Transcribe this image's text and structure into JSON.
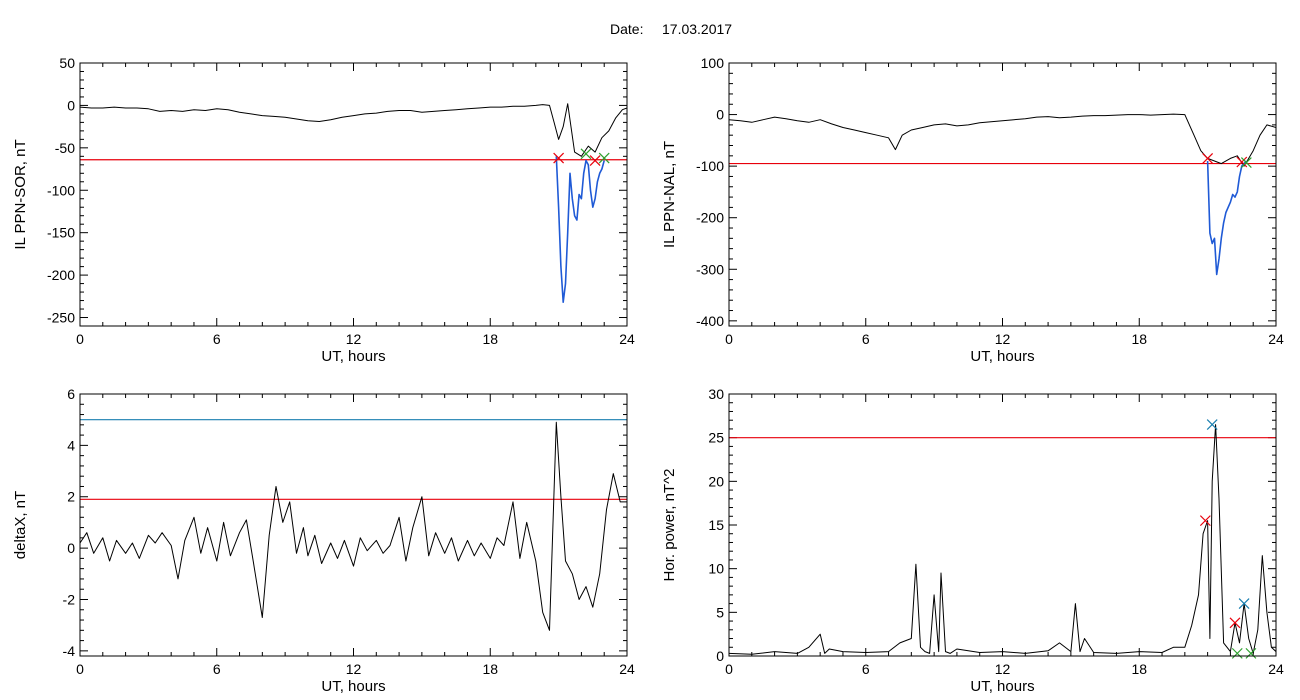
{
  "header": {
    "date_label": "Date:",
    "date_value": "17.03.2017"
  },
  "chart_data": [
    {
      "type": "line",
      "ylabel": "IL PPN-SOR, nT",
      "xlabel": "UT, hours",
      "xlim": [
        0,
        24
      ],
      "ylim": [
        -260,
        50
      ],
      "xticks": [
        0,
        6,
        12,
        18,
        24
      ],
      "yticks": [
        50,
        0,
        -50,
        -100,
        -150,
        -200,
        -250
      ],
      "threshold": {
        "value": -64,
        "color": "#e8000b"
      },
      "series": [
        {
          "role": "baseline",
          "color": "#000000",
          "x": [
            0,
            0.5,
            1,
            1.5,
            2,
            2.5,
            3,
            3.5,
            4,
            4.5,
            5,
            5.5,
            6,
            6.5,
            7,
            7.5,
            8,
            8.5,
            9,
            9.5,
            10,
            10.5,
            11,
            11.5,
            12,
            12.5,
            13,
            13.5,
            14,
            14.5,
            15,
            15.5,
            16,
            16.5,
            17,
            17.5,
            18,
            18.5,
            19,
            19.5,
            20,
            20.3,
            20.6,
            20.8,
            21,
            21.2,
            21.4,
            21.7,
            22,
            22.3,
            22.6,
            22.9,
            23.2,
            23.5,
            23.8,
            24
          ],
          "y": [
            -2,
            -3,
            -3,
            -2,
            -3,
            -3,
            -4,
            -7,
            -6,
            -7,
            -5,
            -6,
            -4,
            -5,
            -8,
            -10,
            -12,
            -13,
            -14,
            -16,
            -18,
            -19,
            -17,
            -14,
            -12,
            -10,
            -9,
            -7,
            -6,
            -6,
            -8,
            -7,
            -6,
            -5,
            -4,
            -3,
            -2,
            -2,
            -1,
            -1,
            0,
            1,
            0,
            -20,
            -40,
            -25,
            2,
            -55,
            -60,
            -48,
            -55,
            -38,
            -30,
            -15,
            -5,
            -3
          ]
        },
        {
          "role": "active",
          "color": "#1f5ad6",
          "x": [
            20.9,
            21.0,
            21.1,
            21.2,
            21.3,
            21.4,
            21.5,
            21.6,
            21.7,
            21.8,
            21.9,
            22.0,
            22.1,
            22.2,
            22.3,
            22.4,
            22.5,
            22.6,
            22.7,
            22.8,
            22.9,
            23.0
          ],
          "y": [
            -60,
            -120,
            -190,
            -232,
            -210,
            -150,
            -80,
            -110,
            -130,
            -135,
            -105,
            -110,
            -80,
            -65,
            -70,
            -100,
            -120,
            -110,
            -90,
            -80,
            -75,
            -65
          ]
        }
      ],
      "markers": [
        {
          "x": 21.0,
          "y": -62,
          "color": "#e8000b"
        },
        {
          "x": 22.2,
          "y": -57,
          "color": "#2ca02c"
        },
        {
          "x": 22.6,
          "y": -65,
          "color": "#e8000b"
        },
        {
          "x": 23.0,
          "y": -62,
          "color": "#2ca02c"
        }
      ]
    },
    {
      "type": "line",
      "ylabel": "IL PPN-NAL, nT",
      "xlabel": "UT, hours",
      "xlim": [
        0,
        24
      ],
      "ylim": [
        -410,
        100
      ],
      "xticks": [
        0,
        6,
        12,
        18,
        24
      ],
      "yticks": [
        100,
        0,
        -100,
        -200,
        -300,
        -400
      ],
      "threshold": {
        "value": -95,
        "color": "#e8000b"
      },
      "series": [
        {
          "role": "baseline",
          "color": "#000000",
          "x": [
            0,
            0.5,
            1,
            1.5,
            2,
            2.5,
            3,
            3.5,
            4,
            4.5,
            5,
            5.5,
            6,
            6.5,
            7,
            7.3,
            7.6,
            8,
            8.5,
            9,
            9.5,
            10,
            10.5,
            11,
            11.5,
            12,
            12.5,
            13,
            13.5,
            14,
            14.5,
            15,
            15.5,
            16,
            16.5,
            17,
            17.5,
            18,
            18.5,
            19,
            19.5,
            20,
            20.4,
            20.7,
            21,
            21.3,
            21.6,
            22,
            22.3,
            22.6,
            23,
            23.3,
            23.6,
            24
          ],
          "y": [
            -10,
            -12,
            -15,
            -10,
            -5,
            -8,
            -12,
            -15,
            -10,
            -18,
            -25,
            -30,
            -35,
            -40,
            -45,
            -68,
            -40,
            -30,
            -25,
            -20,
            -18,
            -22,
            -20,
            -16,
            -14,
            -12,
            -10,
            -8,
            -5,
            -4,
            -6,
            -5,
            -3,
            -2,
            -2,
            -1,
            0,
            0,
            -1,
            0,
            1,
            0,
            -40,
            -70,
            -85,
            -90,
            -95,
            -85,
            -80,
            -100,
            -70,
            -40,
            -20,
            -25
          ]
        },
        {
          "role": "active",
          "color": "#1f5ad6",
          "x": [
            21.0,
            21.1,
            21.2,
            21.3,
            21.4,
            21.5,
            21.6,
            21.7,
            21.8,
            21.9,
            22.0,
            22.1,
            22.2,
            22.3,
            22.4,
            22.5,
            22.6,
            22.7
          ],
          "y": [
            -90,
            -230,
            -250,
            -240,
            -310,
            -280,
            -240,
            -210,
            -190,
            -180,
            -170,
            -155,
            -160,
            -150,
            -120,
            -100,
            -95,
            -90
          ]
        }
      ],
      "markers": [
        {
          "x": 21.0,
          "y": -85,
          "color": "#e8000b"
        },
        {
          "x": 22.5,
          "y": -92,
          "color": "#e8000b"
        },
        {
          "x": 22.7,
          "y": -93,
          "color": "#2ca02c"
        }
      ]
    },
    {
      "type": "line",
      "ylabel": "deltaX, nT",
      "xlabel": "UT, hours",
      "xlim": [
        0,
        24
      ],
      "ylim": [
        -4.2,
        6
      ],
      "xticks": [
        0,
        6,
        12,
        18,
        24
      ],
      "yticks": [
        6,
        4,
        2,
        0,
        -2,
        -4
      ],
      "thresholds": [
        {
          "value": 5.0,
          "color": "#1a7fb0"
        },
        {
          "value": 1.9,
          "color": "#e8000b"
        }
      ],
      "series": [
        {
          "role": "baseline",
          "color": "#000000",
          "x": [
            0,
            0.3,
            0.6,
            1,
            1.3,
            1.6,
            2,
            2.3,
            2.6,
            3,
            3.3,
            3.6,
            4,
            4.3,
            4.6,
            5,
            5.3,
            5.6,
            6,
            6.3,
            6.6,
            7,
            7.3,
            7.6,
            8,
            8.3,
            8.6,
            8.9,
            9.2,
            9.5,
            9.8,
            10,
            10.3,
            10.6,
            11,
            11.3,
            11.6,
            12,
            12.3,
            12.6,
            13,
            13.3,
            13.6,
            14,
            14.3,
            14.6,
            15,
            15.3,
            15.6,
            16,
            16.3,
            16.6,
            17,
            17.3,
            17.6,
            18,
            18.3,
            18.6,
            19,
            19.3,
            19.6,
            20,
            20.3,
            20.6,
            20.9,
            21.1,
            21.3,
            21.6,
            21.9,
            22.2,
            22.5,
            22.8,
            23.1,
            23.4,
            23.7,
            24
          ],
          "y": [
            0.2,
            0.6,
            -0.2,
            0.4,
            -0.5,
            0.3,
            -0.2,
            0.2,
            -0.4,
            0.5,
            0.2,
            0.6,
            0.1,
            -1.2,
            0.3,
            1.2,
            -0.2,
            0.8,
            -0.5,
            1.0,
            -0.3,
            0.6,
            1.1,
            -0.5,
            -2.7,
            0.5,
            2.4,
            1.0,
            1.8,
            -0.2,
            0.8,
            -0.3,
            0.5,
            -0.6,
            0.2,
            -0.4,
            0.3,
            -0.7,
            0.4,
            -0.1,
            0.3,
            -0.2,
            0.1,
            1.2,
            -0.5,
            0.8,
            2.0,
            -0.3,
            0.6,
            -0.2,
            0.4,
            -0.5,
            0.3,
            -0.3,
            0.2,
            -0.4,
            0.4,
            0.1,
            1.8,
            -0.4,
            1.0,
            -0.5,
            -2.5,
            -3.2,
            4.9,
            2.0,
            -0.5,
            -1.0,
            -2.0,
            -1.5,
            -2.3,
            -1.0,
            1.5,
            2.9,
            1.8,
            1.8
          ]
        }
      ]
    },
    {
      "type": "line",
      "ylabel": "Hor. power, nT^2",
      "xlabel": "UT, hours",
      "xlim": [
        0,
        24
      ],
      "ylim": [
        0,
        30
      ],
      "xticks": [
        0,
        6,
        12,
        18,
        24
      ],
      "yticks": [
        30,
        25,
        20,
        15,
        10,
        5,
        0
      ],
      "threshold": {
        "value": 25,
        "color": "#e8000b"
      },
      "series": [
        {
          "role": "baseline",
          "color": "#000000",
          "x": [
            0,
            1,
            2,
            3,
            3.5,
            4,
            4.2,
            4.4,
            5,
            6,
            7,
            7.5,
            8,
            8.2,
            8.4,
            8.6,
            8.8,
            9,
            9.2,
            9.3,
            9.5,
            9.7,
            10,
            11,
            12,
            13,
            14,
            14.5,
            15,
            15.2,
            15.4,
            15.6,
            16,
            17,
            18,
            19,
            19.5,
            20,
            20.3,
            20.6,
            20.8,
            21,
            21.1,
            21.2,
            21.35,
            21.5,
            21.7,
            22,
            22.2,
            22.4,
            22.6,
            22.8,
            23,
            23.2,
            23.4,
            23.6,
            23.8,
            24
          ],
          "y": [
            0.3,
            0.2,
            0.5,
            0.3,
            1.0,
            2.5,
            0.3,
            0.8,
            0.5,
            0.4,
            0.5,
            1.5,
            2.0,
            10.5,
            1.0,
            0.5,
            0.3,
            7.0,
            0.5,
            9.5,
            0.5,
            0.3,
            0.8,
            0.4,
            0.5,
            0.3,
            0.6,
            1.5,
            0.5,
            6.0,
            0.5,
            2.0,
            0.4,
            0.3,
            0.5,
            0.4,
            1.0,
            1.0,
            3.5,
            7.0,
            14.0,
            15.5,
            2.0,
            20.0,
            26.5,
            18.0,
            1.5,
            0.5,
            3.8,
            1.5,
            6.0,
            2.0,
            0.3,
            3.0,
            11.5,
            5.0,
            1.0,
            0.5
          ]
        }
      ],
      "markers": [
        {
          "x": 21.2,
          "y": 26.5,
          "color": "#1a7fb0"
        },
        {
          "x": 20.9,
          "y": 15.5,
          "color": "#e8000b"
        },
        {
          "x": 22.2,
          "y": 3.8,
          "color": "#e8000b"
        },
        {
          "x": 22.6,
          "y": 6.0,
          "color": "#1a7fb0"
        },
        {
          "x": 22.3,
          "y": 0.3,
          "color": "#2ca02c"
        },
        {
          "x": 22.9,
          "y": 0.3,
          "color": "#2ca02c"
        }
      ]
    }
  ]
}
